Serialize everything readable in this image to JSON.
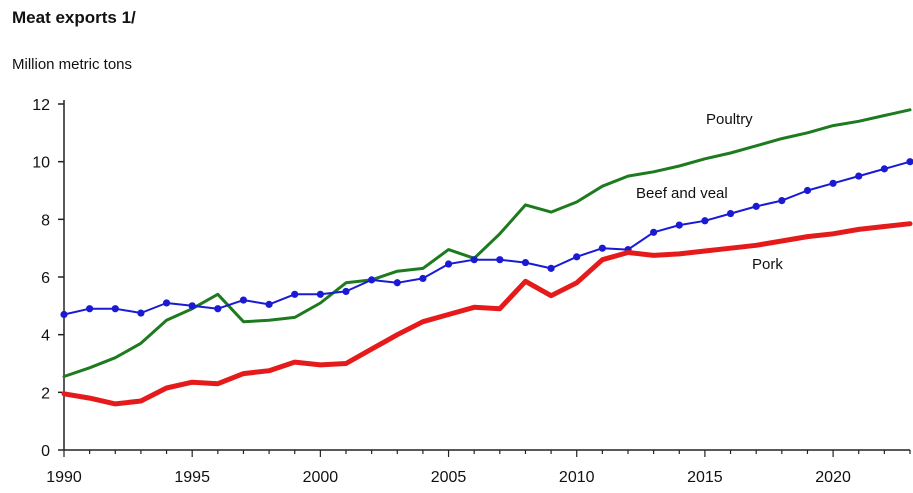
{
  "chart_data": {
    "type": "line",
    "title": "Meat exports 1/",
    "ylabel": "Million metric tons",
    "xlabel": "",
    "xlim": [
      1990,
      2023
    ],
    "ylim": [
      0,
      12
    ],
    "yticks": [
      0,
      2,
      4,
      6,
      8,
      10,
      12
    ],
    "xticks": [
      1990,
      1995,
      2000,
      2005,
      2010,
      2015,
      2020
    ],
    "grid": false,
    "x": [
      1990,
      1991,
      1992,
      1993,
      1994,
      1995,
      1996,
      1997,
      1998,
      1999,
      2000,
      2001,
      2002,
      2003,
      2004,
      2005,
      2006,
      2007,
      2008,
      2009,
      2010,
      2011,
      2012,
      2013,
      2014,
      2015,
      2016,
      2017,
      2018,
      2019,
      2020,
      2021,
      2022,
      2023
    ],
    "series": [
      {
        "name": "Poultry",
        "color": "#1e7a1e",
        "values": [
          2.55,
          2.85,
          3.2,
          3.7,
          4.5,
          4.9,
          5.4,
          4.45,
          4.5,
          4.6,
          5.1,
          5.8,
          5.9,
          6.2,
          6.3,
          6.95,
          6.65,
          7.5,
          8.5,
          8.25,
          8.6,
          9.15,
          9.5,
          9.65,
          9.85,
          10.1,
          10.3,
          10.55,
          10.8,
          11.0,
          11.25,
          11.4,
          11.6,
          11.8
        ]
      },
      {
        "name": "Beef and veal",
        "color": "#1a1ad4",
        "marker": "circle",
        "values": [
          4.7,
          4.9,
          4.9,
          4.75,
          5.1,
          5.0,
          4.9,
          5.2,
          5.05,
          5.4,
          5.4,
          5.5,
          5.9,
          5.8,
          5.95,
          6.45,
          6.6,
          6.6,
          6.5,
          6.3,
          6.7,
          7.0,
          6.95,
          7.55,
          7.8,
          7.95,
          8.2,
          8.45,
          8.65,
          9.0,
          9.25,
          9.5,
          9.75,
          10.0
        ]
      },
      {
        "name": "Pork",
        "color": "#e51b1b",
        "values": [
          1.95,
          1.8,
          1.6,
          1.7,
          2.15,
          2.35,
          2.3,
          2.65,
          2.75,
          3.05,
          2.95,
          3.0,
          3.5,
          4.0,
          4.45,
          4.7,
          4.95,
          4.9,
          5.85,
          5.35,
          5.8,
          6.6,
          6.85,
          6.75,
          6.8,
          6.9,
          7.0,
          7.1,
          7.25,
          7.4,
          7.5,
          7.65,
          7.75,
          7.85
        ]
      }
    ]
  }
}
